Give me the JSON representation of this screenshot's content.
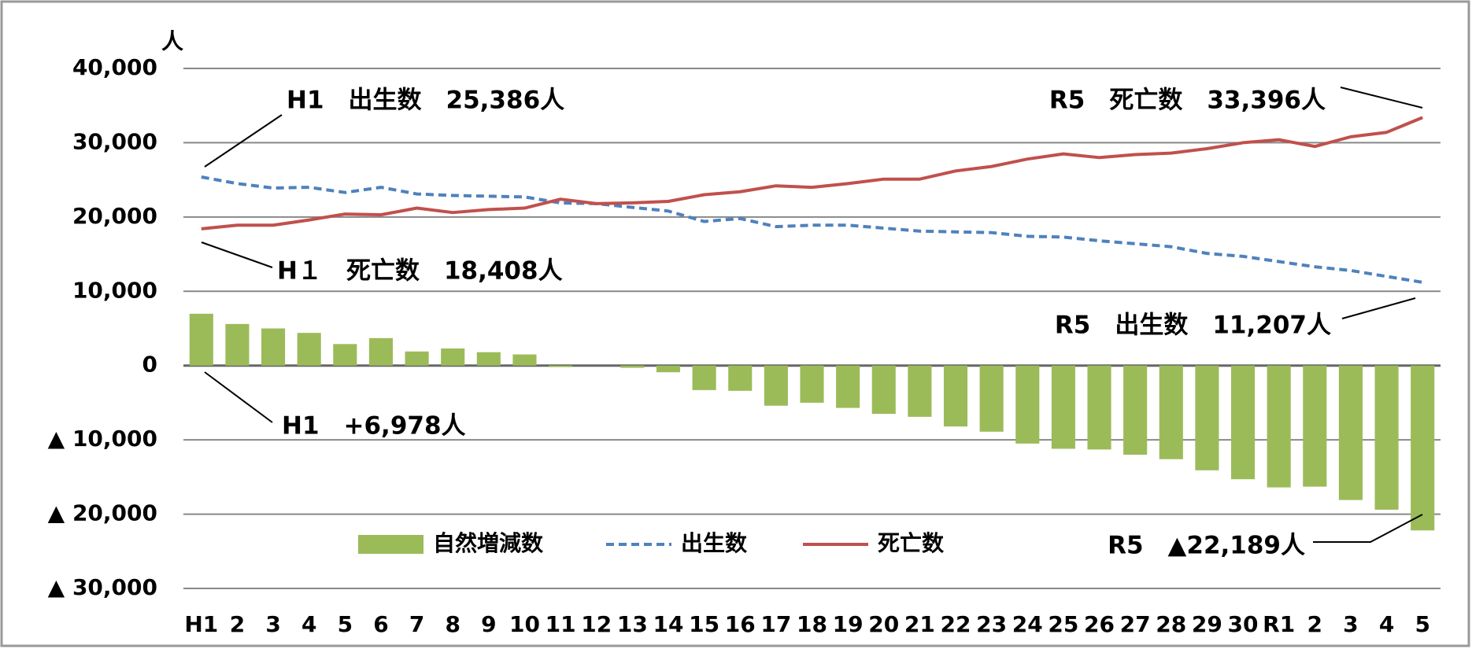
{
  "chart_data": {
    "type": "bar_line",
    "unit": "人",
    "categories": [
      "H1",
      "2",
      "3",
      "4",
      "5",
      "6",
      "7",
      "8",
      "9",
      "10",
      "11",
      "12",
      "13",
      "14",
      "15",
      "16",
      "17",
      "18",
      "19",
      "20",
      "21",
      "22",
      "23",
      "24",
      "25",
      "26",
      "27",
      "28",
      "29",
      "30",
      "R1",
      "2",
      "3",
      "4",
      "5"
    ],
    "series": [
      {
        "name": "自然増減数",
        "type": "bar",
        "color": "#9bbb59",
        "values": [
          6978,
          5600,
          5000,
          4400,
          2900,
          3700,
          1900,
          2300,
          1800,
          1500,
          -200,
          0,
          -300,
          -900,
          -3300,
          -3400,
          -5400,
          -5000,
          -5700,
          -6500,
          -6900,
          -8200,
          -8900,
          -10500,
          -11200,
          -11300,
          -12000,
          -12600,
          -14100,
          -15300,
          -16400,
          -16300,
          -18100,
          -19400,
          -22189
        ]
      },
      {
        "name": "出生数",
        "type": "line",
        "dashed": true,
        "color": "#4f81bd",
        "values": [
          25386,
          24500,
          23900,
          24000,
          23300,
          24000,
          23100,
          22900,
          22800,
          22700,
          21900,
          21800,
          21300,
          20800,
          19400,
          19800,
          18700,
          18900,
          18900,
          18500,
          18100,
          18000,
          17900,
          17400,
          17300,
          16800,
          16400,
          16000,
          15100,
          14700,
          14000,
          13300,
          12800,
          12000,
          11207
        ]
      },
      {
        "name": "死亡数",
        "type": "line",
        "dashed": false,
        "color": "#c0504d",
        "values": [
          18408,
          18900,
          18900,
          19600,
          20400,
          20300,
          21200,
          20600,
          21000,
          21200,
          22400,
          21800,
          21900,
          22100,
          23000,
          23400,
          24200,
          24000,
          24500,
          25100,
          25100,
          26200,
          26800,
          27800,
          28500,
          28000,
          28400,
          28600,
          29200,
          30000,
          30400,
          29500,
          30800,
          31400,
          33396
        ]
      }
    ],
    "ylim": [
      -30000,
      40000
    ],
    "yticks": [
      {
        "value": -30000,
        "label": "▲ 30,000"
      },
      {
        "value": -20000,
        "label": "▲ 20,000"
      },
      {
        "value": -10000,
        "label": "▲ 10,000"
      },
      0,
      {
        "value": 10000,
        "label": "10,000"
      },
      {
        "value": 20000,
        "label": "20,000"
      },
      {
        "value": 30000,
        "label": "30,000"
      },
      {
        "value": 40000,
        "label": "40,000"
      }
    ],
    "grid": true,
    "annotations": [
      "H1　出生数　25,386人",
      "R5　死亡数　33,396人",
      "H１　死亡数　18,408人",
      "R5　出生数　11,207人",
      "H1　+6,978人",
      "R5　▲22,189人"
    ]
  }
}
